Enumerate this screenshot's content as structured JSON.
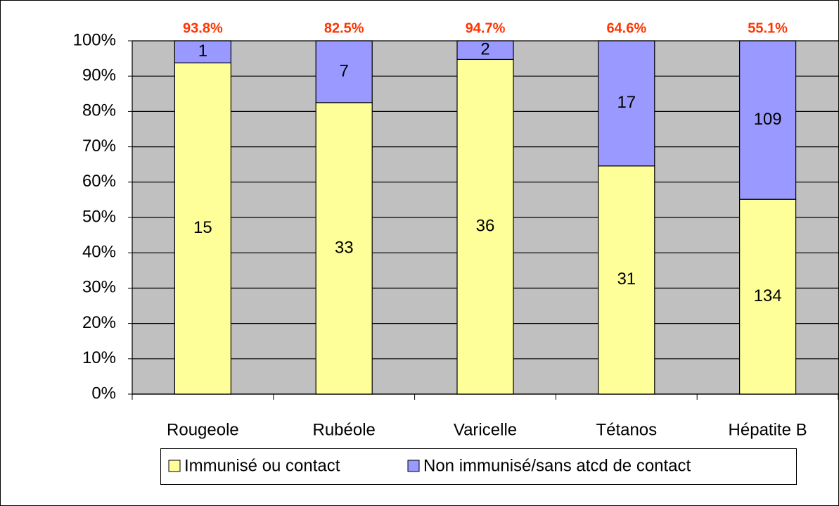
{
  "chart_data": {
    "type": "stacked_percent_bar",
    "categories": [
      "Rougeole",
      "Rubéole",
      "Varicelle",
      "Tétanos",
      "Hépatite B"
    ],
    "series": [
      {
        "name": "Immunisé ou contact",
        "color": "#ffff99",
        "values": [
          15,
          33,
          36,
          31,
          134
        ]
      },
      {
        "name": "Non immunisé/sans atcd de contact",
        "color": "#9999ff",
        "values": [
          1,
          7,
          2,
          17,
          109
        ]
      }
    ],
    "top_labels": [
      "93.8%",
      "82.5%",
      "94.7%",
      "64.6%",
      "55.1%"
    ],
    "top_label_color": "#ff3300",
    "ylim": [
      0,
      100
    ],
    "yticks": [
      {
        "value": 0,
        "label": "0%"
      },
      {
        "value": 10,
        "label": "10%"
      },
      {
        "value": 20,
        "label": "20%"
      },
      {
        "value": 30,
        "label": "30%"
      },
      {
        "value": 40,
        "label": "40%"
      },
      {
        "value": 50,
        "label": "50%"
      },
      {
        "value": 60,
        "label": "60%"
      },
      {
        "value": 70,
        "label": "70%"
      },
      {
        "value": 80,
        "label": "80%"
      },
      {
        "value": 90,
        "label": "90%"
      },
      {
        "value": 100,
        "label": "100%"
      }
    ],
    "grid": true,
    "legend": "bottom"
  }
}
